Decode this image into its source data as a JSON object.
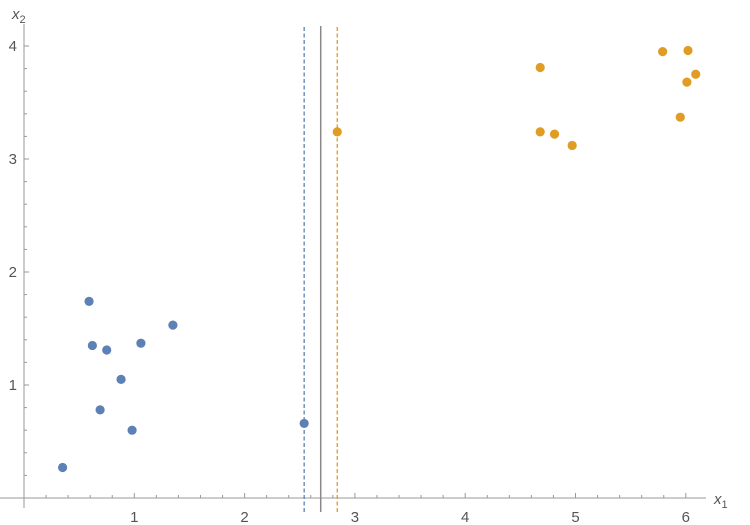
{
  "chart_data": {
    "type": "scatter",
    "xlabel": "x1",
    "ylabel": "x2",
    "xlim": [
      -0.2,
      6.2
    ],
    "ylim": [
      0,
      4.2
    ],
    "xticks": [
      1,
      2,
      3,
      4,
      5,
      6
    ],
    "yticks": [
      1,
      2,
      3,
      4
    ],
    "series": [
      {
        "color": "#5E81B5",
        "points": [
          [
            0.35,
            0.27
          ],
          [
            0.59,
            1.74
          ],
          [
            0.62,
            1.35
          ],
          [
            0.75,
            1.31
          ],
          [
            1.06,
            1.37
          ],
          [
            1.35,
            1.53
          ],
          [
            0.88,
            1.05
          ],
          [
            0.69,
            0.78
          ],
          [
            0.98,
            0.6
          ],
          [
            2.54,
            0.66
          ]
        ]
      },
      {
        "color": "#E19C24",
        "points": [
          [
            2.84,
            3.24
          ],
          [
            4.68,
            3.81
          ],
          [
            4.68,
            3.24
          ],
          [
            4.81,
            3.22
          ],
          [
            4.97,
            3.12
          ],
          [
            5.79,
            3.95
          ],
          [
            6.02,
            3.96
          ],
          [
            6.09,
            3.75
          ],
          [
            6.01,
            3.68
          ],
          [
            5.95,
            3.37
          ]
        ]
      }
    ],
    "vlines": [
      {
        "x": 2.54,
        "color": "#5E81B5",
        "style": "dashed"
      },
      {
        "x": 2.69,
        "color": "#888888",
        "style": "solid"
      },
      {
        "x": 2.84,
        "color": "#E19C24",
        "style": "dashed"
      }
    ],
    "grid": false
  }
}
